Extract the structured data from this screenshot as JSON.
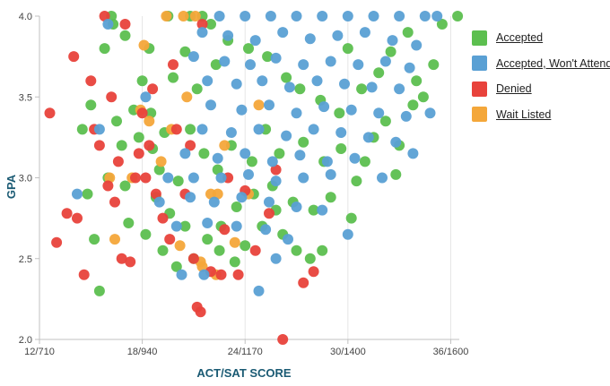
{
  "chart_data": {
    "type": "scatter",
    "title": "",
    "xlabel": "ACT/SAT SCORE",
    "ylabel": "GPA",
    "x_tick_labels": [
      "12/710",
      "18/940",
      "24/1170",
      "30/1400",
      "36/1600"
    ],
    "x_tick_act": [
      12,
      18,
      24,
      30,
      36
    ],
    "xlim": [
      12,
      36.5
    ],
    "ylim": [
      2.0,
      4.0
    ],
    "y_ticks": [
      2.0,
      2.5,
      3.0,
      3.5,
      4.0
    ],
    "y_tick_labels": [
      "2.0",
      "2.5",
      "3.0",
      "3.5",
      "4.0"
    ],
    "grid": "vertical lines at x ticks",
    "legend_position": "right",
    "series": [
      {
        "name": "Accepted",
        "color": "#5cbf4f",
        "points": [
          [
            16.2,
            4.0
          ],
          [
            19.5,
            4.0
          ],
          [
            20.8,
            4.0
          ],
          [
            21.5,
            4.0
          ],
          [
            17.0,
            3.88
          ],
          [
            18.4,
            3.8
          ],
          [
            20.5,
            3.78
          ],
          [
            22.3,
            3.7
          ],
          [
            19.8,
            3.62
          ],
          [
            21.2,
            3.55
          ],
          [
            16.5,
            3.35
          ],
          [
            17.8,
            3.25
          ],
          [
            18.6,
            3.18
          ],
          [
            19.0,
            3.05
          ],
          [
            20.1,
            2.98
          ],
          [
            18.8,
            2.88
          ],
          [
            19.6,
            2.78
          ],
          [
            20.5,
            2.7
          ],
          [
            21.8,
            2.62
          ],
          [
            22.5,
            2.55
          ],
          [
            23.4,
            2.48
          ],
          [
            24.0,
            2.58
          ],
          [
            25.0,
            2.7
          ],
          [
            26.2,
            2.65
          ],
          [
            27.0,
            2.55
          ],
          [
            27.8,
            2.5
          ],
          [
            15.5,
            2.3
          ],
          [
            17.2,
            2.72
          ],
          [
            18.2,
            2.65
          ],
          [
            19.2,
            2.55
          ],
          [
            20.0,
            2.45
          ],
          [
            21.0,
            2.5
          ],
          [
            22.6,
            2.7
          ],
          [
            23.5,
            2.82
          ],
          [
            24.5,
            2.9
          ],
          [
            25.6,
            2.95
          ],
          [
            26.8,
            2.85
          ],
          [
            28.0,
            2.8
          ],
          [
            29.0,
            2.88
          ],
          [
            30.2,
            2.75
          ],
          [
            30.5,
            2.98
          ],
          [
            31.0,
            3.1
          ],
          [
            31.5,
            3.25
          ],
          [
            32.2,
            3.35
          ],
          [
            33.0,
            3.2
          ],
          [
            33.8,
            3.45
          ],
          [
            34.4,
            3.5
          ],
          [
            35.0,
            3.7
          ],
          [
            35.5,
            3.95
          ],
          [
            36.4,
            4.0
          ],
          [
            14.5,
            3.3
          ],
          [
            15.0,
            3.45
          ],
          [
            16.0,
            3.0
          ],
          [
            16.8,
            3.2
          ],
          [
            17.5,
            3.42
          ],
          [
            18.0,
            3.6
          ],
          [
            15.8,
            3.8
          ],
          [
            16.3,
            3.95
          ],
          [
            22.0,
            3.95
          ],
          [
            23.0,
            3.85
          ],
          [
            24.2,
            3.8
          ],
          [
            25.3,
            3.75
          ],
          [
            26.4,
            3.62
          ],
          [
            27.2,
            3.55
          ],
          [
            28.4,
            3.48
          ],
          [
            29.5,
            3.4
          ],
          [
            30.8,
            3.55
          ],
          [
            31.8,
            3.65
          ],
          [
            32.5,
            3.78
          ],
          [
            33.5,
            3.9
          ],
          [
            20.8,
            3.3
          ],
          [
            21.6,
            3.15
          ],
          [
            22.4,
            3.05
          ],
          [
            23.2,
            3.2
          ],
          [
            24.4,
            3.1
          ],
          [
            25.2,
            3.3
          ],
          [
            26.0,
            3.15
          ],
          [
            27.4,
            3.22
          ],
          [
            28.6,
            3.1
          ],
          [
            29.6,
            3.18
          ],
          [
            15.2,
            2.62
          ],
          [
            14.8,
            2.9
          ],
          [
            17.0,
            2.95
          ],
          [
            18.5,
            3.4
          ],
          [
            19.3,
            3.28
          ],
          [
            25.8,
            2.8
          ],
          [
            28.5,
            2.55
          ],
          [
            32.8,
            3.02
          ],
          [
            34.0,
            3.6
          ],
          [
            30.0,
            3.8
          ]
        ]
      },
      {
        "name": "Accepted, Won't Attend",
        "color": "#5aa0d4",
        "points": [
          [
            22.5,
            4.0
          ],
          [
            24.0,
            4.0
          ],
          [
            25.5,
            4.0
          ],
          [
            27.0,
            4.0
          ],
          [
            28.5,
            4.0
          ],
          [
            30.0,
            4.0
          ],
          [
            31.5,
            4.0
          ],
          [
            33.0,
            4.0
          ],
          [
            34.5,
            4.0
          ],
          [
            21.5,
            3.9
          ],
          [
            23.0,
            3.88
          ],
          [
            24.6,
            3.85
          ],
          [
            26.2,
            3.9
          ],
          [
            27.8,
            3.86
          ],
          [
            29.4,
            3.88
          ],
          [
            31.0,
            3.9
          ],
          [
            32.6,
            3.85
          ],
          [
            34.0,
            3.82
          ],
          [
            21.0,
            3.75
          ],
          [
            22.8,
            3.72
          ],
          [
            24.3,
            3.7
          ],
          [
            25.8,
            3.74
          ],
          [
            27.4,
            3.7
          ],
          [
            29.0,
            3.72
          ],
          [
            30.6,
            3.7
          ],
          [
            32.2,
            3.72
          ],
          [
            33.6,
            3.68
          ],
          [
            21.8,
            3.6
          ],
          [
            23.5,
            3.58
          ],
          [
            25.0,
            3.6
          ],
          [
            26.6,
            3.56
          ],
          [
            28.2,
            3.6
          ],
          [
            29.8,
            3.58
          ],
          [
            31.4,
            3.56
          ],
          [
            33.0,
            3.55
          ],
          [
            22.0,
            3.45
          ],
          [
            23.8,
            3.42
          ],
          [
            25.4,
            3.45
          ],
          [
            27.0,
            3.4
          ],
          [
            28.6,
            3.44
          ],
          [
            30.2,
            3.42
          ],
          [
            31.8,
            3.4
          ],
          [
            33.4,
            3.38
          ],
          [
            21.5,
            3.3
          ],
          [
            23.2,
            3.28
          ],
          [
            24.8,
            3.3
          ],
          [
            26.4,
            3.26
          ],
          [
            28.0,
            3.3
          ],
          [
            29.6,
            3.28
          ],
          [
            31.2,
            3.25
          ],
          [
            32.8,
            3.22
          ],
          [
            20.5,
            3.15
          ],
          [
            22.4,
            3.12
          ],
          [
            24.0,
            3.15
          ],
          [
            25.6,
            3.1
          ],
          [
            27.2,
            3.14
          ],
          [
            28.8,
            3.1
          ],
          [
            30.4,
            3.12
          ],
          [
            19.5,
            3.0
          ],
          [
            21.0,
            3.0
          ],
          [
            22.6,
            3.0
          ],
          [
            24.2,
            3.02
          ],
          [
            25.8,
            2.98
          ],
          [
            27.4,
            3.0
          ],
          [
            29.0,
            3.02
          ],
          [
            19.0,
            2.85
          ],
          [
            20.8,
            2.88
          ],
          [
            22.2,
            2.85
          ],
          [
            23.8,
            2.88
          ],
          [
            25.4,
            2.85
          ],
          [
            27.0,
            2.82
          ],
          [
            20.0,
            2.7
          ],
          [
            21.8,
            2.72
          ],
          [
            23.5,
            2.7
          ],
          [
            25.2,
            2.68
          ],
          [
            26.5,
            2.62
          ],
          [
            24.8,
            2.3
          ],
          [
            25.8,
            2.5
          ],
          [
            30.0,
            2.65
          ],
          [
            28.5,
            2.8
          ],
          [
            20.3,
            2.4
          ],
          [
            21.6,
            2.4
          ],
          [
            15.5,
            3.3
          ],
          [
            16.0,
            3.95
          ],
          [
            14.2,
            2.9
          ],
          [
            18.2,
            3.5
          ],
          [
            34.8,
            3.4
          ],
          [
            33.8,
            3.15
          ],
          [
            32.0,
            3.0
          ],
          [
            35.2,
            4.0
          ]
        ]
      },
      {
        "name": "Denied",
        "color": "#e8423b",
        "points": [
          [
            12.6,
            3.4
          ],
          [
            13.0,
            2.6
          ],
          [
            13.6,
            2.78
          ],
          [
            14.2,
            2.75
          ],
          [
            14.6,
            2.4
          ],
          [
            15.2,
            3.3
          ],
          [
            15.8,
            4.0
          ],
          [
            16.2,
            3.5
          ],
          [
            16.6,
            3.1
          ],
          [
            16.8,
            2.5
          ],
          [
            17.3,
            2.48
          ],
          [
            17.6,
            3.0
          ],
          [
            18.0,
            3.4
          ],
          [
            18.4,
            3.2
          ],
          [
            18.8,
            2.9
          ],
          [
            19.2,
            2.75
          ],
          [
            19.6,
            2.62
          ],
          [
            20.0,
            3.3
          ],
          [
            20.5,
            2.9
          ],
          [
            21.0,
            2.5
          ],
          [
            21.2,
            2.2
          ],
          [
            21.4,
            2.17
          ],
          [
            22.0,
            2.42
          ],
          [
            22.6,
            2.4
          ],
          [
            23.6,
            2.4
          ],
          [
            24.6,
            2.55
          ],
          [
            25.4,
            2.78
          ],
          [
            26.2,
            2.0
          ],
          [
            27.4,
            2.35
          ],
          [
            28.0,
            2.42
          ],
          [
            15.0,
            3.6
          ],
          [
            14.0,
            3.75
          ],
          [
            17.0,
            3.95
          ],
          [
            18.2,
            3.0
          ],
          [
            19.8,
            3.7
          ],
          [
            21.5,
            3.95
          ],
          [
            23.0,
            3.0
          ],
          [
            24.0,
            2.92
          ],
          [
            16.0,
            2.95
          ],
          [
            17.8,
            3.15
          ],
          [
            16.4,
            2.85
          ],
          [
            20.8,
            3.2
          ],
          [
            22.8,
            2.68
          ],
          [
            25.8,
            3.05
          ],
          [
            15.5,
            3.2
          ],
          [
            18.6,
            3.55
          ]
        ]
      },
      {
        "name": "Wait Listed",
        "color": "#f4a73a",
        "points": [
          [
            16.4,
            2.62
          ],
          [
            17.9,
            3.42
          ],
          [
            18.1,
            3.82
          ],
          [
            19.4,
            4.0
          ],
          [
            20.4,
            4.0
          ],
          [
            21.1,
            4.0
          ],
          [
            22.0,
            2.9
          ],
          [
            22.4,
            2.9
          ],
          [
            21.4,
            2.48
          ],
          [
            21.5,
            2.45
          ],
          [
            20.6,
            3.5
          ],
          [
            19.7,
            3.3
          ],
          [
            22.8,
            3.2
          ],
          [
            23.4,
            2.6
          ],
          [
            24.2,
            2.9
          ],
          [
            18.4,
            3.35
          ],
          [
            17.4,
            3.0
          ],
          [
            20.2,
            2.58
          ],
          [
            19.1,
            3.1
          ],
          [
            22.3,
            2.4
          ],
          [
            24.8,
            3.45
          ],
          [
            16.1,
            3.0
          ]
        ]
      }
    ]
  },
  "legend": {
    "items": [
      {
        "label": "Accepted",
        "color": "#5cbf4f"
      },
      {
        "label": "Accepted, Won't Attend",
        "color": "#5aa0d4"
      },
      {
        "label": "Denied",
        "color": "#e8423b"
      },
      {
        "label": "Wait Listed",
        "color": "#f4a73a"
      }
    ]
  }
}
